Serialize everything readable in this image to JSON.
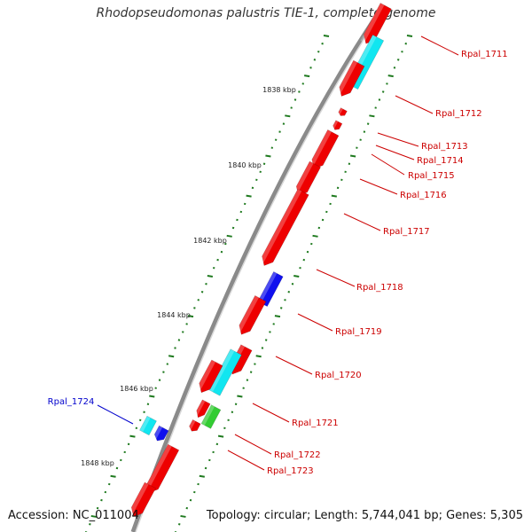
{
  "title": "Rhodopseudomonas palustris TIE-1, complete genome",
  "footer": {
    "accession": "Accession: NC_011004",
    "summary": "Topology: circular; Length: 5,744,041 bp; Genes: 5,305"
  },
  "colors": {
    "backbone": "#8a8a8a",
    "tick": "#1f7a1f",
    "gene_red": "#ee0000",
    "gene_cyan": "#11e6f0",
    "gene_blue": "#1010ee",
    "gene_green": "#33cc33",
    "label_red": "#cc0000",
    "label_blue": "#0000cc"
  },
  "kbp_labels": [
    "1838 kbp",
    "1840 kbp",
    "1842 kbp",
    "1844 kbp",
    "1846 kbp",
    "1848 kbp"
  ],
  "gene_labels": [
    {
      "name": "Rpal_1711",
      "color": "red"
    },
    {
      "name": "Rpal_1712",
      "color": "red"
    },
    {
      "name": "Rpal_1713",
      "color": "red"
    },
    {
      "name": "Rpal_1714",
      "color": "red"
    },
    {
      "name": "Rpal_1715",
      "color": "red"
    },
    {
      "name": "Rpal_1716",
      "color": "red"
    },
    {
      "name": "Rpal_1717",
      "color": "red"
    },
    {
      "name": "Rpal_1718",
      "color": "red"
    },
    {
      "name": "Rpal_1719",
      "color": "red"
    },
    {
      "name": "Rpal_1720",
      "color": "red"
    },
    {
      "name": "Rpal_1721",
      "color": "red"
    },
    {
      "name": "Rpal_1722",
      "color": "red"
    },
    {
      "name": "Rpal_1723",
      "color": "red"
    },
    {
      "name": "Rpal_1724",
      "color": "blue"
    }
  ]
}
